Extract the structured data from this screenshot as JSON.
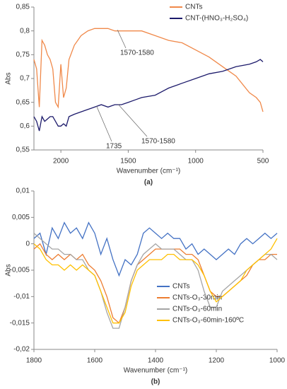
{
  "chart_data": [
    {
      "type": "line",
      "panel_label": "(a)",
      "y_label": "Abs",
      "x_label": "Wavenumber (cm⁻¹)",
      "xlim": [
        2200,
        500
      ],
      "xticks": [
        2000,
        1500,
        1000,
        500
      ],
      "ylim": [
        0.55,
        0.85
      ],
      "yticks": [
        {
          "value": 0.55,
          "label": "0,55"
        },
        {
          "value": 0.6,
          "label": "0,6"
        },
        {
          "value": 0.65,
          "label": "0,65"
        },
        {
          "value": 0.7,
          "label": "0,7"
        },
        {
          "value": 0.75,
          "label": "0,75"
        },
        {
          "value": 0.8,
          "label": "0,8"
        },
        {
          "value": 0.85,
          "label": "0,85"
        }
      ],
      "annotations": [
        "1570-1580",
        "1735",
        "1570-1580"
      ],
      "legend": "upper right",
      "x": [
        2200,
        2180,
        2160,
        2140,
        2120,
        2100,
        2080,
        2060,
        2040,
        2020,
        2000,
        1980,
        1960,
        1940,
        1900,
        1850,
        1800,
        1750,
        1700,
        1650,
        1600,
        1550,
        1500,
        1450,
        1400,
        1300,
        1200,
        1100,
        1000,
        900,
        800,
        700,
        600,
        550,
        520,
        500
      ],
      "series": [
        {
          "name": "CNTs",
          "color": "#f0894a",
          "values": [
            0.74,
            0.72,
            0.64,
            0.78,
            0.77,
            0.75,
            0.74,
            0.72,
            0.65,
            0.64,
            0.73,
            0.66,
            0.68,
            0.74,
            0.77,
            0.79,
            0.8,
            0.805,
            0.805,
            0.805,
            0.8,
            0.8,
            0.8,
            0.8,
            0.8,
            0.79,
            0.78,
            0.775,
            0.76,
            0.745,
            0.725,
            0.705,
            0.67,
            0.66,
            0.65,
            0.63
          ]
        },
        {
          "name": "CNT-(HNO₃-H₂SO₄)",
          "color": "#1c1a6b",
          "values": [
            0.62,
            0.61,
            0.59,
            0.62,
            0.61,
            0.615,
            0.62,
            0.62,
            0.61,
            0.6,
            0.6,
            0.605,
            0.6,
            0.62,
            0.625,
            0.63,
            0.635,
            0.64,
            0.645,
            0.64,
            0.645,
            0.645,
            0.65,
            0.655,
            0.66,
            0.665,
            0.68,
            0.69,
            0.7,
            0.71,
            0.715,
            0.725,
            0.73,
            0.735,
            0.74,
            0.735
          ]
        }
      ]
    },
    {
      "type": "line",
      "panel_label": "(b)",
      "y_label": "Abs",
      "x_label": "Wavenumber (cm⁻¹)",
      "xlim": [
        1800,
        1000
      ],
      "xticks": [
        1800,
        1600,
        1400,
        1200,
        1000
      ],
      "ylim": [
        -0.02,
        0.01
      ],
      "yticks": [
        {
          "value": -0.02,
          "label": "-0,02"
        },
        {
          "value": -0.015,
          "label": "-0,015"
        },
        {
          "value": -0.01,
          "label": "-0,01"
        },
        {
          "value": -0.005,
          "label": "-0,005"
        },
        0,
        {
          "value": 0.005,
          "label": "0,005"
        },
        {
          "value": 0.01,
          "label": "0,01"
        }
      ],
      "legend": "lower right",
      "x": [
        1800,
        1780,
        1760,
        1740,
        1720,
        1700,
        1680,
        1660,
        1640,
        1620,
        1600,
        1580,
        1560,
        1540,
        1520,
        1500,
        1480,
        1460,
        1440,
        1420,
        1400,
        1380,
        1360,
        1340,
        1320,
        1300,
        1280,
        1260,
        1240,
        1220,
        1200,
        1180,
        1160,
        1140,
        1120,
        1100,
        1080,
        1060,
        1040,
        1020,
        1000
      ],
      "series": [
        {
          "name": "CNTs",
          "color": "#4472c4",
          "values": [
            0.001,
            0.002,
            -0.002,
            0.003,
            0.001,
            0.004,
            0.002,
            0.003,
            0.001,
            0.004,
            0.002,
            -0.002,
            0.001,
            -0.003,
            -0.006,
            -0.003,
            -0.004,
            -0.002,
            0.002,
            0.003,
            0.002,
            0.001,
            0.002,
            0.001,
            0.001,
            -0.001,
            0,
            -0.002,
            -0.001,
            -0.002,
            -0.003,
            -0.002,
            -0.001,
            -0.002,
            0,
            0.001,
            0,
            0.001,
            0.002,
            0.001,
            0.002
          ]
        },
        {
          "name": "CNTs-O₃-30min",
          "color": "#ed7d31",
          "values": [
            -0.001,
            0,
            -0.002,
            -0.003,
            -0.002,
            -0.003,
            -0.002,
            -0.003,
            -0.002,
            -0.004,
            -0.005,
            -0.007,
            -0.01,
            -0.014,
            -0.015,
            -0.012,
            -0.007,
            -0.004,
            -0.003,
            -0.002,
            -0.001,
            -0.001,
            -0.001,
            -0.001,
            -0.001,
            -0.002,
            -0.002,
            -0.003,
            -0.006,
            -0.009,
            -0.01,
            -0.01,
            -0.009,
            -0.008,
            -0.007,
            -0.006,
            -0.004,
            -0.003,
            -0.003,
            -0.002,
            -0.002
          ]
        },
        {
          "name": "CNTs-O₃-60min",
          "color": "#a5a5a5",
          "values": [
            0.002,
            0.001,
            0,
            -0.001,
            -0.001,
            -0.002,
            -0.002,
            -0.003,
            -0.003,
            -0.005,
            -0.006,
            -0.009,
            -0.013,
            -0.016,
            -0.016,
            -0.012,
            -0.007,
            -0.004,
            -0.002,
            -0.001,
            0,
            -0.001,
            -0.001,
            -0.001,
            -0.002,
            -0.003,
            -0.003,
            -0.005,
            -0.009,
            -0.012,
            -0.012,
            -0.009,
            -0.008,
            -0.007,
            -0.006,
            -0.005,
            -0.004,
            -0.003,
            -0.002,
            -0.002,
            -0.003
          ]
        },
        {
          "name": "CNTs-O₃-60min-160ºC",
          "color": "#ffc000",
          "values": [
            0,
            -0.001,
            -0.003,
            -0.004,
            -0.004,
            -0.005,
            -0.004,
            -0.005,
            -0.004,
            -0.005,
            -0.006,
            -0.009,
            -0.012,
            -0.015,
            -0.015,
            -0.013,
            -0.008,
            -0.005,
            -0.004,
            -0.003,
            -0.003,
            -0.003,
            -0.002,
            -0.002,
            -0.003,
            -0.003,
            -0.003,
            -0.004,
            -0.006,
            -0.009,
            -0.011,
            -0.01,
            -0.009,
            -0.008,
            -0.007,
            -0.005,
            -0.004,
            -0.003,
            -0.002,
            -0.001,
            0.001
          ]
        }
      ]
    }
  ]
}
